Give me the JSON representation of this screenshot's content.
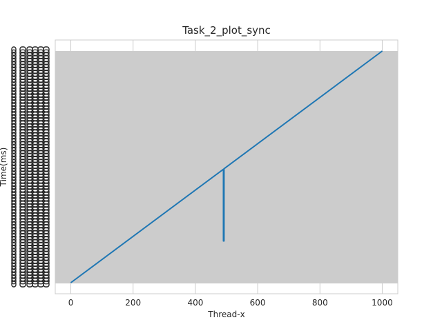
{
  "chart_data": {
    "type": "line",
    "title": "Task_2_plot_sync",
    "xlabel": "Thread-x",
    "ylabel": "Time(ms)",
    "xlim": [
      -50,
      1050
    ],
    "x_ticks": [
      0,
      200,
      400,
      600,
      800,
      1000
    ],
    "grid": true,
    "legend": "none",
    "colors": {
      "line": "#1f77b4",
      "plot_bg": "#cccccc",
      "spine": "#cccccc",
      "grid": "#cccccc",
      "text": "#262626"
    },
    "y_axis_note": "y tick labels are dense and overlapping (unreadable)",
    "series": [
      {
        "x": [
          0,
          490,
          490,
          492,
          492,
          1000
        ],
        "y": [
          0.0,
          0.49,
          0.18,
          0.18,
          0.492,
          1.0
        ]
      }
    ]
  }
}
